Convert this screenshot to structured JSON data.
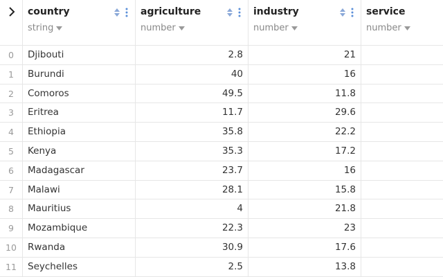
{
  "columns": [
    {
      "name": "country",
      "type": "string"
    },
    {
      "name": "agriculture",
      "type": "number"
    },
    {
      "name": "industry",
      "type": "number"
    },
    {
      "name": "service",
      "type": "number"
    }
  ],
  "rows": [
    {
      "index": 0,
      "country": "Djibouti",
      "agriculture": 2.8,
      "industry": 21
    },
    {
      "index": 1,
      "country": "Burundi",
      "agriculture": 40,
      "industry": 16
    },
    {
      "index": 2,
      "country": "Comoros",
      "agriculture": 49.5,
      "industry": 11.8
    },
    {
      "index": 3,
      "country": "Eritrea",
      "agriculture": 11.7,
      "industry": 29.6
    },
    {
      "index": 4,
      "country": "Ethiopia",
      "agriculture": 35.8,
      "industry": 22.2
    },
    {
      "index": 5,
      "country": "Kenya",
      "agriculture": 35.3,
      "industry": 17.2
    },
    {
      "index": 6,
      "country": "Madagascar",
      "agriculture": 23.7,
      "industry": 16
    },
    {
      "index": 7,
      "country": "Malawi",
      "agriculture": 28.1,
      "industry": 15.8
    },
    {
      "index": 8,
      "country": "Mauritius",
      "agriculture": 4,
      "industry": 21.8
    },
    {
      "index": 9,
      "country": "Mozambique",
      "agriculture": 22.3,
      "industry": 23
    },
    {
      "index": 10,
      "country": "Rwanda",
      "agriculture": 30.9,
      "industry": 17.6
    },
    {
      "index": 11,
      "country": "Seychelles",
      "agriculture": 2.5,
      "industry": 13.8
    }
  ]
}
